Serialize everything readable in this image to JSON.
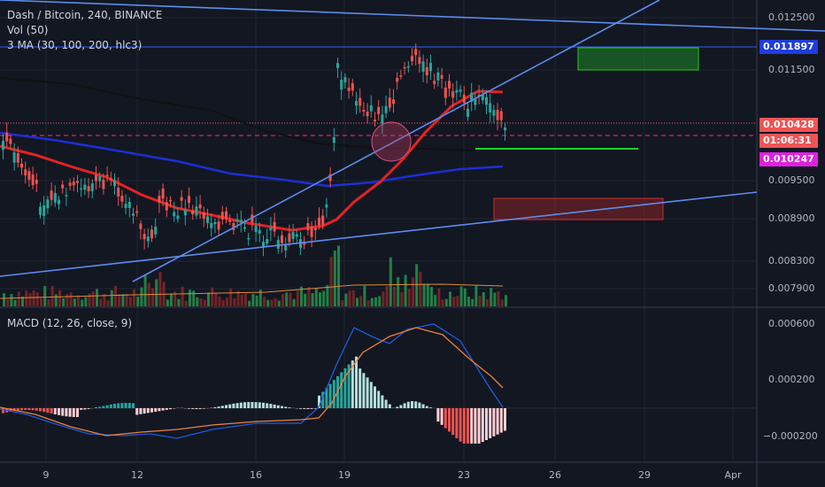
{
  "header": {
    "symbol_line": "Dash / Bitcoin, 240, BINANCE",
    "volume_line": "Vol (50)",
    "ma_line": "3 MA (30, 100, 200, hlc3)",
    "macd_line": "MACD (12, 26, close, 9)"
  },
  "price_axis": {
    "ticks": [
      "0.012500",
      "0.011500",
      "0.010428",
      "0.009500",
      "0.008900",
      "0.008300",
      "0.007900"
    ],
    "labels": {
      "blue_level": "0.011897",
      "last_price": "0.010428",
      "countdown": "01:06:31",
      "ma_value": "0.010247"
    }
  },
  "macd_axis": {
    "ticks": [
      "0.000600",
      "0.000200",
      "−0.000200"
    ]
  },
  "time_axis": {
    "ticks": [
      "9",
      "12",
      "16",
      "19",
      "23",
      "26",
      "29",
      "Apr"
    ]
  },
  "colors": {
    "background": "#131722",
    "up": "#26a69a",
    "down": "#ef5350",
    "ma30": "#e52222",
    "ma100": "#1e2ed6",
    "ma200": "#111111",
    "trendline": "#5b8def",
    "blue_level": "#2962ff",
    "last_price": "#f05454",
    "ma_value": "#e020e0",
    "macd_line": "#1e5be0",
    "signal_line": "#f0803c"
  },
  "chart_data": {
    "type": "candlestick",
    "title": "Dash / Bitcoin, 240, BINANCE",
    "y_range": [
      0.0076,
      0.0127
    ],
    "key_levels": [
      0.011897,
      0.010428,
      0.010247
    ],
    "zones": [
      {
        "color": "green",
        "y_range": [
          0.01145,
          0.01185
        ]
      },
      {
        "color": "red",
        "y_range": [
          0.00885,
          0.0092
        ]
      }
    ],
    "macd_range": [
      -0.0003,
      0.0007
    ]
  }
}
